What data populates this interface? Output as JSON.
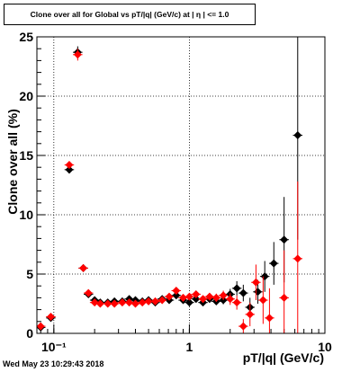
{
  "page_title": "Clone  over all for Global vs pT/|q| (GeV/c) at |  η  | <= 1.0",
  "timestamp": "Wed May 23 10:29:43 2018",
  "chart_data": {
    "type": "scatter",
    "title": "Clone  over all for Global vs pT/|q| (GeV/c) at |  η  | <= 1.0",
    "xlabel": "pT/|q| (GeV/c)",
    "ylabel": "Clone  over all (%)",
    "xscale": "log",
    "xlim": [
      0.075,
      10
    ],
    "ylim": [
      0,
      25
    ],
    "grid": true,
    "x_ticks": [
      {
        "value": 0.1,
        "label": "10⁻¹"
      },
      {
        "value": 1,
        "label": "1"
      },
      {
        "value": 10,
        "label": "10"
      }
    ],
    "y_ticks": [
      {
        "value": 0,
        "label": "0"
      },
      {
        "value": 5,
        "label": "5"
      },
      {
        "value": 10,
        "label": "10"
      },
      {
        "value": 15,
        "label": "15"
      },
      {
        "value": 20,
        "label": "20"
      },
      {
        "value": 25,
        "label": "25"
      }
    ],
    "series": [
      {
        "color": "#000000",
        "marker": "diamond",
        "x": [
          0.08,
          0.095,
          0.13,
          0.15,
          0.165,
          0.18,
          0.2,
          0.22,
          0.25,
          0.28,
          0.32,
          0.36,
          0.4,
          0.45,
          0.5,
          0.56,
          0.63,
          0.71,
          0.8,
          0.9,
          1.0,
          1.12,
          1.26,
          1.41,
          1.58,
          1.78,
          2.0,
          2.24,
          2.5,
          2.8,
          3.2,
          3.6,
          4.2,
          5.0,
          6.3
        ],
        "y": [
          0.5,
          1.3,
          13.8,
          23.7,
          5.5,
          3.3,
          2.8,
          2.6,
          2.6,
          2.7,
          2.7,
          2.9,
          2.8,
          2.7,
          2.8,
          2.6,
          2.9,
          2.8,
          3.2,
          2.8,
          2.6,
          2.9,
          2.6,
          2.9,
          2.7,
          2.8,
          3.3,
          3.8,
          3.4,
          2.2,
          3.5,
          4.8,
          5.9,
          7.9,
          16.7
        ],
        "err": [
          0.15,
          0.2,
          0.3,
          0.5,
          0.3,
          0.2,
          0.15,
          0.1,
          0.1,
          0.1,
          0.1,
          0.1,
          0.1,
          0.1,
          0.1,
          0.1,
          0.12,
          0.12,
          0.15,
          0.15,
          0.15,
          0.2,
          0.2,
          0.25,
          0.3,
          0.35,
          0.45,
          0.6,
          0.7,
          0.8,
          1.0,
          1.3,
          1.8,
          3.6,
          8.8
        ]
      },
      {
        "color": "#ff0000",
        "marker": "diamond",
        "x": [
          0.08,
          0.095,
          0.13,
          0.15,
          0.165,
          0.18,
          0.2,
          0.22,
          0.25,
          0.28,
          0.32,
          0.36,
          0.4,
          0.45,
          0.5,
          0.56,
          0.63,
          0.71,
          0.8,
          0.9,
          1.0,
          1.12,
          1.26,
          1.41,
          1.58,
          1.78,
          2.0,
          2.24,
          2.5,
          2.8,
          3.1,
          3.5,
          3.9,
          5.0,
          6.3
        ],
        "y": [
          0.6,
          1.4,
          14.2,
          23.5,
          5.5,
          3.4,
          2.6,
          2.5,
          2.5,
          2.5,
          2.6,
          2.6,
          2.5,
          2.6,
          2.7,
          2.7,
          2.8,
          3.1,
          3.6,
          3.0,
          3.1,
          3.3,
          2.9,
          3.1,
          3.0,
          3.2,
          2.9,
          2.6,
          0.6,
          1.6,
          4.3,
          2.8,
          1.3,
          3.0,
          6.3
        ],
        "err": [
          0.15,
          0.2,
          0.3,
          0.5,
          0.3,
          0.2,
          0.15,
          0.1,
          0.1,
          0.1,
          0.1,
          0.1,
          0.1,
          0.1,
          0.1,
          0.12,
          0.12,
          0.15,
          0.2,
          0.2,
          0.2,
          0.25,
          0.25,
          0.3,
          0.35,
          0.4,
          0.5,
          0.6,
          0.6,
          1.0,
          1.5,
          2.0,
          2.5,
          4.0,
          6.5
        ]
      }
    ]
  }
}
